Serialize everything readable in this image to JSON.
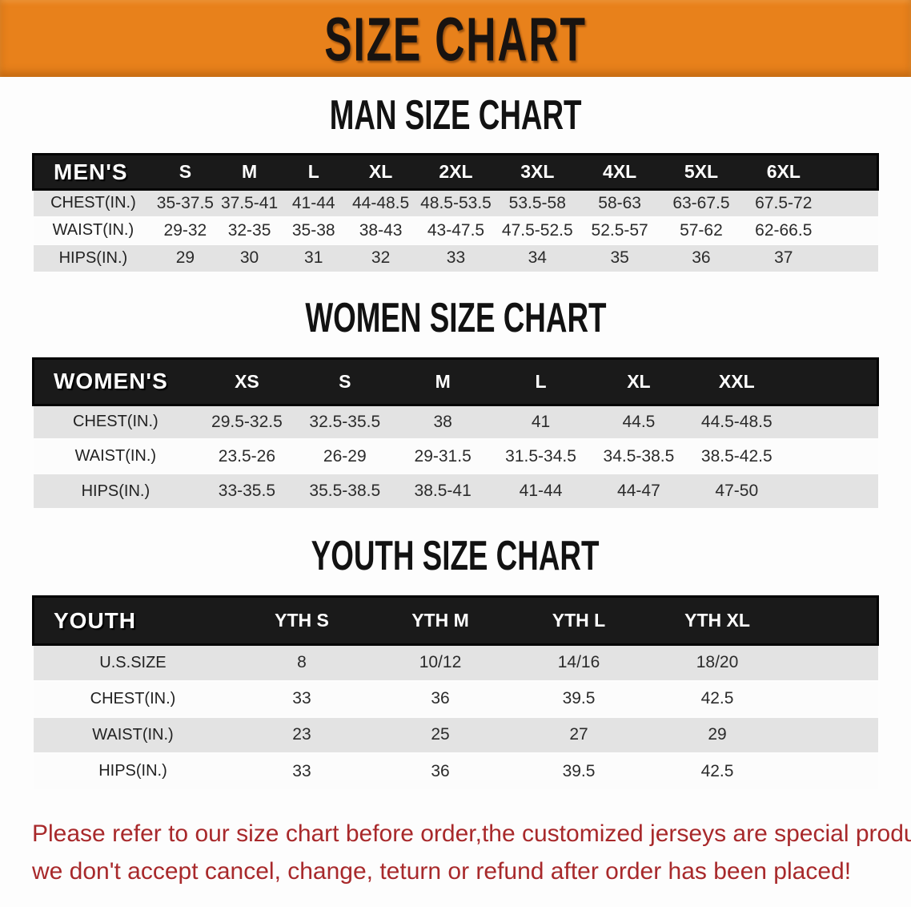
{
  "banner": {
    "title": "SIZE CHART",
    "background_color": "#e8811b",
    "text_color": "#181310"
  },
  "sections": [
    {
      "title": "MAN SIZE CHART",
      "header_label": "MEN'S",
      "sizes": [
        "S",
        "M",
        "L",
        "XL",
        "2XL",
        "3XL",
        "4XL",
        "5XL",
        "6XL"
      ],
      "rows": [
        {
          "label": "CHEST(IN.)",
          "values": [
            "35-37.5",
            "37.5-41",
            "41-44",
            "44-48.5",
            "48.5-53.5",
            "53.5-58",
            "58-63",
            "63-67.5",
            "67.5-72"
          ]
        },
        {
          "label": "WAIST(IN.)",
          "values": [
            "29-32",
            "32-35",
            "35-38",
            "38-43",
            "43-47.5",
            "47.5-52.5",
            "52.5-57",
            "57-62",
            "62-66.5"
          ]
        },
        {
          "label": "HIPS(IN.)",
          "values": [
            "29",
            "30",
            "31",
            "32",
            "33",
            "34",
            "35",
            "36",
            "37"
          ]
        }
      ]
    },
    {
      "title": "WOMEN SIZE CHART",
      "header_label": "WOMEN'S",
      "sizes": [
        "XS",
        "S",
        "M",
        "L",
        "XL",
        "XXL"
      ],
      "rows": [
        {
          "label": "CHEST(IN.)",
          "values": [
            "29.5-32.5",
            "32.5-35.5",
            "38",
            "41",
            "44.5",
            "44.5-48.5"
          ]
        },
        {
          "label": "WAIST(IN.)",
          "values": [
            "23.5-26",
            "26-29",
            "29-31.5",
            "31.5-34.5",
            "34.5-38.5",
            "38.5-42.5"
          ]
        },
        {
          "label": "HIPS(IN.)",
          "values": [
            "33-35.5",
            "35.5-38.5",
            "38.5-41",
            "41-44",
            "44-47",
            "47-50"
          ]
        }
      ]
    },
    {
      "title": "YOUTH SIZE CHART",
      "header_label": "YOUTH",
      "sizes": [
        "YTH S",
        "YTH M",
        "YTH L",
        "YTH XL"
      ],
      "rows": [
        {
          "label": "U.S.SIZE",
          "values": [
            "8",
            "10/12",
            "14/16",
            "18/20"
          ]
        },
        {
          "label": "CHEST(IN.)",
          "values": [
            "33",
            "36",
            "39.5",
            "42.5"
          ]
        },
        {
          "label": "WAIST(IN.)",
          "values": [
            "23",
            "25",
            "27",
            "29"
          ]
        },
        {
          "label": "HIPS(IN.)",
          "values": [
            "33",
            "36",
            "39.5",
            "42.5"
          ]
        }
      ]
    }
  ],
  "note": {
    "color": "#a8292b",
    "lines": [
      "Please refer to our size chart before order,the customized jerseys are special products,",
      "we don't accept cancel, change, teturn or refund after order has been placed!"
    ]
  },
  "row_colors": {
    "odd": "#e3e3e3",
    "even": "#fcfcfc",
    "header": "#1a1a1a"
  }
}
